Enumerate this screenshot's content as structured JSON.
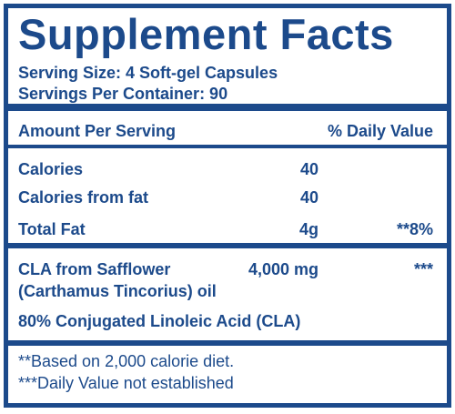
{
  "title": "Supplement Facts",
  "serving": [
    "Serving Size: 4 Soft-gel Capsules",
    "Servings Per Container:  90"
  ],
  "header": {
    "amount": "Amount Per Serving",
    "dv": "% Daily Value"
  },
  "rows": [
    {
      "name": "Calories",
      "amount": "40"
    },
    {
      "name": "Calories from fat",
      "amount": "40"
    },
    {
      "name": "Total Fat",
      "amount": "4g",
      "dv": "**8%"
    }
  ],
  "ingredients": [
    {
      "name": [
        "CLA from Safflower",
        "(Carthamus Tincorius) oil"
      ],
      "amount": "4,000 mg",
      "dv": "***"
    },
    "80% Conjugated Linoleic Acid (CLA)"
  ],
  "footnotes": [
    "**Based on 2,000 calorie diet.",
    "***Daily Value not established"
  ]
}
